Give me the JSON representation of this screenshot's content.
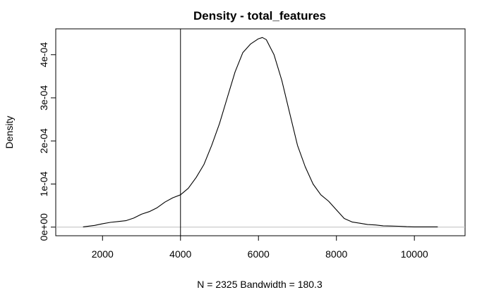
{
  "chart_data": {
    "type": "line",
    "title": "Density - total_features",
    "xlabel": "N = 2325   Bandwidth = 180.3",
    "ylabel": "Density",
    "xlim": [
      800,
      11300
    ],
    "ylim": [
      -2e-05,
      0.00046
    ],
    "x_ticks": [
      2000,
      4000,
      6000,
      8000,
      10000
    ],
    "x_tick_labels": [
      "2000",
      "4000",
      "6000",
      "8000",
      "10000"
    ],
    "y_ticks": [
      0,
      0.0001,
      0.0002,
      0.0003,
      0.0004
    ],
    "y_tick_labels": [
      "0e+00",
      "1e-04",
      "2e-04",
      "3e-04",
      "4e-04"
    ],
    "grid": false,
    "legend": "none",
    "reference_lines": {
      "vertical_x": 4000,
      "horizontal_y": 0,
      "horizontal_color": "#bebebe"
    },
    "series": [
      {
        "x": [
          1500,
          1800,
          2000,
          2200,
          2400,
          2600,
          2800,
          3000,
          3200,
          3400,
          3600,
          3800,
          4000,
          4200,
          4400,
          4600,
          4800,
          5000,
          5200,
          5400,
          5600,
          5800,
          6000,
          6100,
          6200,
          6400,
          6600,
          6800,
          7000,
          7200,
          7400,
          7600,
          7800,
          8000,
          8200,
          8400,
          8600,
          8800,
          9000,
          9200,
          9400,
          9600,
          9800,
          10000,
          10300,
          10600
        ],
        "y": [
          5e-07,
          4e-06,
          8e-06,
          1.1e-05,
          1.3e-05,
          1.5e-05,
          2.1e-05,
          3e-05,
          3.6e-05,
          4.5e-05,
          5.8e-05,
          6.8e-05,
          7.5e-05,
          9e-05,
          0.000115,
          0.000145,
          0.00019,
          0.00024,
          0.0003,
          0.00036,
          0.000405,
          0.000425,
          0.000437,
          0.00044,
          0.000435,
          0.0004,
          0.00034,
          0.000265,
          0.00019,
          0.00014,
          0.0001,
          7.5e-05,
          6e-05,
          4e-05,
          2e-05,
          1.2e-05,
          9e-06,
          6e-06,
          5e-06,
          3e-06,
          2.5e-06,
          2e-06,
          1e-06,
          5e-07,
          5e-07,
          5e-07
        ],
        "color": "#000000"
      }
    ]
  }
}
